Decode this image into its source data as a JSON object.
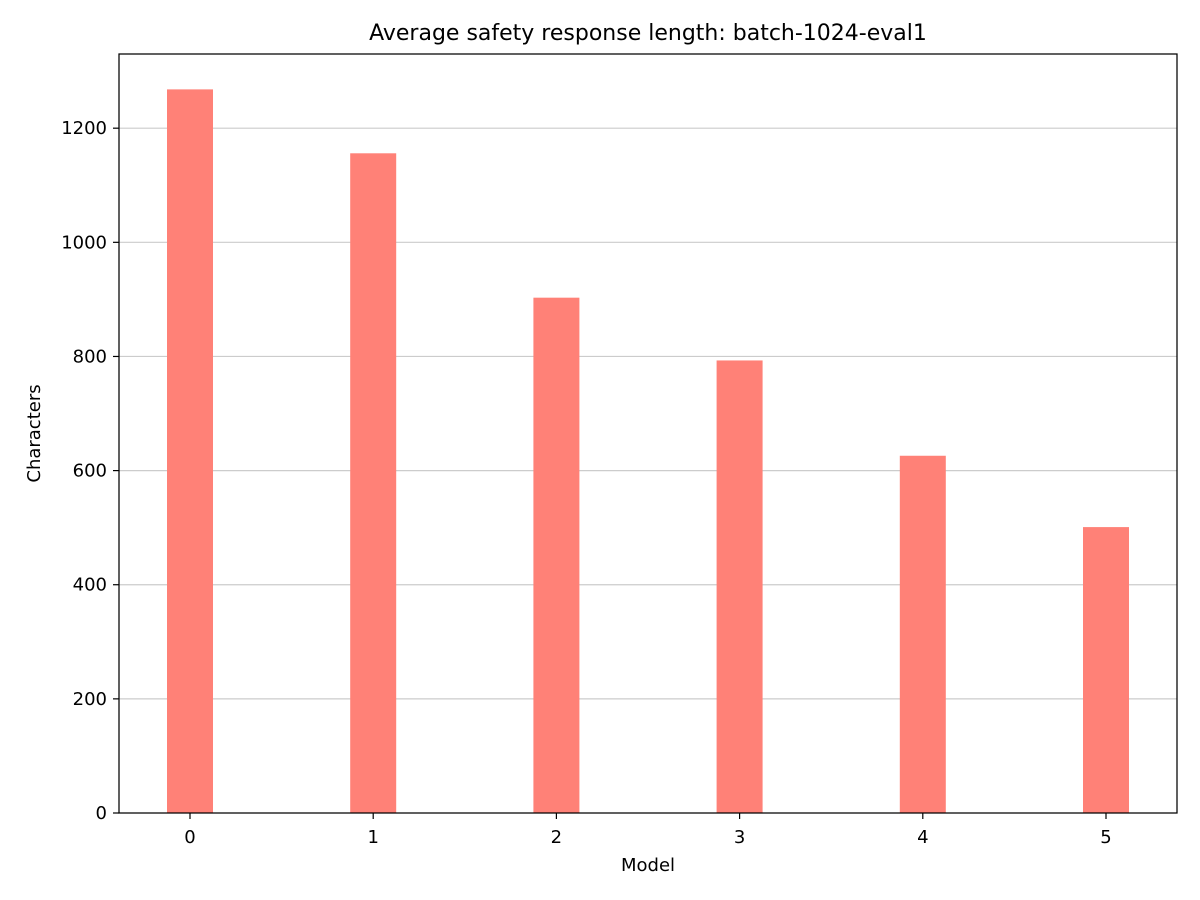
{
  "chart_data": {
    "type": "bar",
    "title": "Average safety response length: batch-1024-eval1",
    "xlabel": "Model",
    "ylabel": "Characters",
    "categories": [
      "0",
      "1",
      "2",
      "3",
      "4",
      "5"
    ],
    "values": [
      1268,
      1156,
      903,
      793,
      626,
      501
    ],
    "ylim": [
      0,
      1330
    ],
    "yticks": [
      0,
      200,
      400,
      600,
      800,
      1000,
      1200
    ],
    "grid": "horizontal",
    "bar_color": "#ff8177",
    "grid_color": "#cccccc"
  }
}
